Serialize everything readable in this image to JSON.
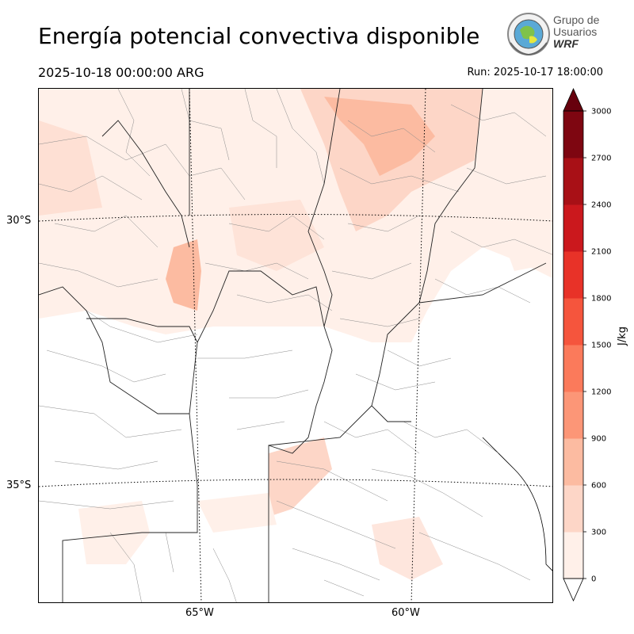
{
  "title": "Energía potencial convectiva disponible",
  "valid_time": "2025-10-18 00:00:00 ARG",
  "run_time": "Run: 2025-10-17 18:00:00",
  "logo": {
    "line1": "Grupo de",
    "line2": "Usuarios",
    "line3": "WRF"
  },
  "map": {
    "lat_labels": [
      "30°S",
      "35°S"
    ],
    "lon_labels": [
      "65°W",
      "60°W"
    ]
  },
  "colorbar": {
    "unit_label": "J/kg",
    "ticks": [
      "3000",
      "2700",
      "2400",
      "2100",
      "1800",
      "1500",
      "1200",
      "900",
      "600",
      "300",
      "0"
    ],
    "colors": [
      "#fff0e9",
      "#fdd6c7",
      "#fcbba1",
      "#fc9677",
      "#fb7a5b",
      "#f5553d",
      "#e83228",
      "#cb181d",
      "#a81016",
      "#7e0611"
    ],
    "extend_color": "#67000d"
  }
}
